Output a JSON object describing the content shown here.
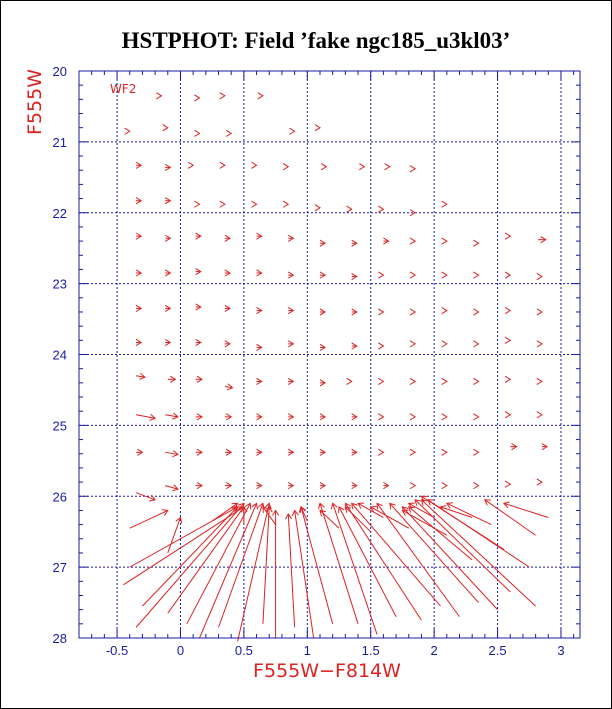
{
  "chart_data": {
    "type": "scatter",
    "title": "HSTPHOT: Field ’fake ngc185_u3kl03’",
    "xlabel": "F555W−F814W",
    "ylabel": "F555W",
    "xlim": [
      -0.8,
      3.15
    ],
    "ylim": [
      20,
      28
    ],
    "y_inverted": true,
    "grid": true,
    "x_grid": [
      -0.5,
      0,
      0.5,
      1,
      1.5,
      2,
      2.5,
      3
    ],
    "y_grid": [
      21,
      22,
      23,
      24,
      25,
      26,
      27
    ],
    "x_major_ticks": [
      -0.5,
      0,
      0.5,
      1,
      1.5,
      2,
      2.5,
      3
    ],
    "x_tick_labels": [
      "-0.5",
      "0",
      "0.5",
      "1",
      "1.5",
      "2",
      "2.5",
      "3"
    ],
    "y_major_ticks": [
      20,
      21,
      22,
      23,
      24,
      25,
      26,
      27,
      28
    ],
    "y_tick_labels": [
      "20",
      "21",
      "22",
      "23",
      "24",
      "25",
      "26",
      "27",
      "28"
    ],
    "annotation": "WF2",
    "series_style": "arrows from input (head) to recovered color/magnitude",
    "vectors": [
      {
        "x": -0.15,
        "y": 20.35,
        "dx": 0.0,
        "dy": 0.0
      },
      {
        "x": 0.15,
        "y": 20.38,
        "dx": 0.0,
        "dy": 0.0
      },
      {
        "x": 0.35,
        "y": 20.35,
        "dx": 0.0,
        "dy": 0.0
      },
      {
        "x": 0.65,
        "y": 20.35,
        "dx": 0.0,
        "dy": 0.0
      },
      {
        "x": -0.4,
        "y": 20.85,
        "dx": 0.0,
        "dy": 0.0
      },
      {
        "x": -0.1,
        "y": 20.8,
        "dx": 0.0,
        "dy": 0.0
      },
      {
        "x": 0.15,
        "y": 20.88,
        "dx": 0.0,
        "dy": 0.0
      },
      {
        "x": 0.4,
        "y": 20.88,
        "dx": 0.0,
        "dy": 0.0
      },
      {
        "x": 0.9,
        "y": 20.85,
        "dx": 0.0,
        "dy": 0.0
      },
      {
        "x": 1.1,
        "y": 20.8,
        "dx": 0.0,
        "dy": 0.0
      },
      {
        "x": -0.35,
        "y": 21.33,
        "dx": 0.04,
        "dy": 0.0
      },
      {
        "x": -0.12,
        "y": 21.36,
        "dx": 0.04,
        "dy": 0.0
      },
      {
        "x": 0.1,
        "y": 21.33,
        "dx": 0.0,
        "dy": 0.0
      },
      {
        "x": 0.35,
        "y": 21.33,
        "dx": 0.0,
        "dy": 0.0
      },
      {
        "x": 0.6,
        "y": 21.33,
        "dx": 0.0,
        "dy": 0.0
      },
      {
        "x": 0.85,
        "y": 21.35,
        "dx": 0.0,
        "dy": 0.0
      },
      {
        "x": 1.15,
        "y": 21.35,
        "dx": 0.0,
        "dy": 0.0
      },
      {
        "x": 1.45,
        "y": 21.35,
        "dx": 0.0,
        "dy": 0.0
      },
      {
        "x": 1.65,
        "y": 21.35,
        "dx": 0.0,
        "dy": 0.0
      },
      {
        "x": 1.85,
        "y": 21.38,
        "dx": 0.0,
        "dy": 0.0
      },
      {
        "x": -0.35,
        "y": 21.83,
        "dx": 0.04,
        "dy": 0.0
      },
      {
        "x": -0.12,
        "y": 21.83,
        "dx": 0.04,
        "dy": 0.0
      },
      {
        "x": 0.15,
        "y": 21.88,
        "dx": 0.0,
        "dy": 0.0
      },
      {
        "x": 0.35,
        "y": 21.88,
        "dx": 0.0,
        "dy": 0.0
      },
      {
        "x": 0.6,
        "y": 21.88,
        "dx": 0.0,
        "dy": 0.0
      },
      {
        "x": 0.85,
        "y": 21.88,
        "dx": 0.0,
        "dy": 0.0
      },
      {
        "x": 1.1,
        "y": 21.93,
        "dx": 0.0,
        "dy": 0.0
      },
      {
        "x": 1.35,
        "y": 21.95,
        "dx": 0.0,
        "dy": 0.0
      },
      {
        "x": 1.6,
        "y": 21.95,
        "dx": 0.0,
        "dy": 0.0
      },
      {
        "x": 1.85,
        "y": 22.0,
        "dx": 0.0,
        "dy": 0.0
      },
      {
        "x": 2.1,
        "y": 21.88,
        "dx": 0.0,
        "dy": 0.0
      },
      {
        "x": -0.35,
        "y": 22.33,
        "dx": 0.04,
        "dy": 0.0
      },
      {
        "x": -0.12,
        "y": 22.36,
        "dx": 0.04,
        "dy": 0.0
      },
      {
        "x": 0.12,
        "y": 22.33,
        "dx": 0.04,
        "dy": 0.0
      },
      {
        "x": 0.35,
        "y": 22.36,
        "dx": 0.04,
        "dy": 0.0
      },
      {
        "x": 0.6,
        "y": 22.33,
        "dx": 0.04,
        "dy": 0.0
      },
      {
        "x": 0.85,
        "y": 22.36,
        "dx": 0.04,
        "dy": 0.0
      },
      {
        "x": 1.1,
        "y": 22.43,
        "dx": 0.04,
        "dy": 0.0
      },
      {
        "x": 1.35,
        "y": 22.43,
        "dx": 0.04,
        "dy": 0.0
      },
      {
        "x": 1.6,
        "y": 22.4,
        "dx": 0.04,
        "dy": 0.0
      },
      {
        "x": 1.85,
        "y": 22.4,
        "dx": 0.0,
        "dy": 0.0
      },
      {
        "x": 2.1,
        "y": 22.4,
        "dx": 0.0,
        "dy": 0.0
      },
      {
        "x": 2.35,
        "y": 22.43,
        "dx": 0.0,
        "dy": 0.0
      },
      {
        "x": 2.6,
        "y": 22.33,
        "dx": 0.0,
        "dy": 0.0
      },
      {
        "x": 2.82,
        "y": 22.38,
        "dx": 0.06,
        "dy": 0.0
      },
      {
        "x": -0.35,
        "y": 22.85,
        "dx": 0.04,
        "dy": 0.0
      },
      {
        "x": -0.12,
        "y": 22.85,
        "dx": 0.04,
        "dy": 0.0
      },
      {
        "x": 0.12,
        "y": 22.83,
        "dx": 0.04,
        "dy": 0.0
      },
      {
        "x": 0.35,
        "y": 22.85,
        "dx": 0.04,
        "dy": 0.0
      },
      {
        "x": 0.6,
        "y": 22.85,
        "dx": 0.04,
        "dy": 0.0
      },
      {
        "x": 0.85,
        "y": 22.88,
        "dx": 0.04,
        "dy": 0.0
      },
      {
        "x": 1.1,
        "y": 22.88,
        "dx": 0.04,
        "dy": 0.0
      },
      {
        "x": 1.35,
        "y": 22.9,
        "dx": 0.04,
        "dy": 0.0
      },
      {
        "x": 1.6,
        "y": 22.88,
        "dx": 0.0,
        "dy": 0.0
      },
      {
        "x": 1.85,
        "y": 22.88,
        "dx": 0.0,
        "dy": 0.0
      },
      {
        "x": 2.1,
        "y": 22.88,
        "dx": 0.0,
        "dy": 0.0
      },
      {
        "x": 2.35,
        "y": 22.88,
        "dx": 0.0,
        "dy": 0.0
      },
      {
        "x": 2.6,
        "y": 22.88,
        "dx": 0.0,
        "dy": 0.0
      },
      {
        "x": 2.85,
        "y": 22.9,
        "dx": 0.0,
        "dy": 0.0
      },
      {
        "x": -0.35,
        "y": 23.35,
        "dx": 0.04,
        "dy": 0.0
      },
      {
        "x": -0.12,
        "y": 23.35,
        "dx": 0.04,
        "dy": 0.0
      },
      {
        "x": 0.12,
        "y": 23.33,
        "dx": 0.04,
        "dy": 0.0
      },
      {
        "x": 0.35,
        "y": 23.35,
        "dx": 0.04,
        "dy": 0.0
      },
      {
        "x": 0.6,
        "y": 23.38,
        "dx": 0.04,
        "dy": 0.0
      },
      {
        "x": 0.85,
        "y": 23.38,
        "dx": 0.04,
        "dy": 0.0
      },
      {
        "x": 1.1,
        "y": 23.4,
        "dx": 0.04,
        "dy": 0.0
      },
      {
        "x": 1.35,
        "y": 23.4,
        "dx": 0.04,
        "dy": 0.0
      },
      {
        "x": 1.6,
        "y": 23.4,
        "dx": 0.0,
        "dy": 0.0
      },
      {
        "x": 1.85,
        "y": 23.4,
        "dx": 0.0,
        "dy": 0.0
      },
      {
        "x": 2.1,
        "y": 23.38,
        "dx": 0.0,
        "dy": 0.0
      },
      {
        "x": 2.35,
        "y": 23.4,
        "dx": 0.0,
        "dy": 0.0
      },
      {
        "x": 2.6,
        "y": 23.38,
        "dx": 0.0,
        "dy": 0.0
      },
      {
        "x": 2.85,
        "y": 23.4,
        "dx": 0.0,
        "dy": 0.0
      },
      {
        "x": -0.35,
        "y": 23.83,
        "dx": 0.04,
        "dy": 0.0
      },
      {
        "x": -0.12,
        "y": 23.83,
        "dx": 0.04,
        "dy": 0.0
      },
      {
        "x": 0.12,
        "y": 23.83,
        "dx": 0.04,
        "dy": 0.0
      },
      {
        "x": 0.35,
        "y": 23.85,
        "dx": 0.04,
        "dy": 0.0
      },
      {
        "x": 0.6,
        "y": 23.9,
        "dx": 0.04,
        "dy": 0.0
      },
      {
        "x": 0.85,
        "y": 23.85,
        "dx": 0.04,
        "dy": 0.0
      },
      {
        "x": 1.1,
        "y": 23.9,
        "dx": 0.04,
        "dy": 0.0
      },
      {
        "x": 1.35,
        "y": 23.88,
        "dx": 0.04,
        "dy": 0.0
      },
      {
        "x": 1.6,
        "y": 23.88,
        "dx": 0.0,
        "dy": 0.0
      },
      {
        "x": 1.85,
        "y": 23.85,
        "dx": 0.0,
        "dy": 0.0
      },
      {
        "x": 2.1,
        "y": 23.85,
        "dx": 0.0,
        "dy": 0.0
      },
      {
        "x": 2.35,
        "y": 23.85,
        "dx": 0.0,
        "dy": 0.0
      },
      {
        "x": 2.6,
        "y": 23.8,
        "dx": 0.0,
        "dy": 0.0
      },
      {
        "x": 2.85,
        "y": 23.85,
        "dx": 0.0,
        "dy": 0.0
      },
      {
        "x": -0.35,
        "y": 24.3,
        "dx": 0.07,
        "dy": 0.02
      },
      {
        "x": -0.1,
        "y": 24.35,
        "dx": 0.06,
        "dy": 0.0
      },
      {
        "x": 0.12,
        "y": 24.35,
        "dx": 0.05,
        "dy": 0.0
      },
      {
        "x": 0.35,
        "y": 24.45,
        "dx": 0.06,
        "dy": 0.02
      },
      {
        "x": 0.6,
        "y": 24.38,
        "dx": 0.04,
        "dy": 0.0
      },
      {
        "x": 0.85,
        "y": 24.38,
        "dx": 0.04,
        "dy": 0.0
      },
      {
        "x": 1.1,
        "y": 24.4,
        "dx": 0.04,
        "dy": 0.0
      },
      {
        "x": 1.35,
        "y": 24.38,
        "dx": 0.0,
        "dy": 0.0
      },
      {
        "x": 1.6,
        "y": 24.38,
        "dx": 0.0,
        "dy": 0.0
      },
      {
        "x": 1.85,
        "y": 24.38,
        "dx": 0.0,
        "dy": 0.0
      },
      {
        "x": 2.1,
        "y": 24.38,
        "dx": 0.0,
        "dy": 0.0
      },
      {
        "x": 2.35,
        "y": 24.38,
        "dx": 0.0,
        "dy": 0.0
      },
      {
        "x": 2.6,
        "y": 24.35,
        "dx": 0.0,
        "dy": 0.0
      },
      {
        "x": 2.85,
        "y": 24.38,
        "dx": 0.0,
        "dy": 0.0
      },
      {
        "x": -0.35,
        "y": 24.85,
        "dx": 0.15,
        "dy": 0.05
      },
      {
        "x": -0.12,
        "y": 24.85,
        "dx": 0.1,
        "dy": 0.03
      },
      {
        "x": 0.12,
        "y": 24.88,
        "dx": 0.05,
        "dy": 0.0
      },
      {
        "x": 0.35,
        "y": 24.88,
        "dx": 0.05,
        "dy": 0.0
      },
      {
        "x": 0.6,
        "y": 24.88,
        "dx": 0.04,
        "dy": 0.0
      },
      {
        "x": 0.85,
        "y": 24.88,
        "dx": 0.04,
        "dy": 0.0
      },
      {
        "x": 1.1,
        "y": 24.88,
        "dx": 0.04,
        "dy": 0.0
      },
      {
        "x": 1.35,
        "y": 24.88,
        "dx": 0.04,
        "dy": 0.0
      },
      {
        "x": 1.6,
        "y": 24.88,
        "dx": 0.0,
        "dy": 0.0
      },
      {
        "x": 1.85,
        "y": 24.88,
        "dx": 0.0,
        "dy": 0.0
      },
      {
        "x": 2.1,
        "y": 24.88,
        "dx": 0.0,
        "dy": 0.0
      },
      {
        "x": 2.35,
        "y": 24.88,
        "dx": 0.0,
        "dy": 0.0
      },
      {
        "x": 2.6,
        "y": 24.85,
        "dx": 0.0,
        "dy": 0.0
      },
      {
        "x": 2.85,
        "y": 24.85,
        "dx": 0.0,
        "dy": 0.0
      },
      {
        "x": -0.35,
        "y": 25.38,
        "dx": 0.05,
        "dy": 0.0
      },
      {
        "x": -0.12,
        "y": 25.38,
        "dx": 0.1,
        "dy": 0.03
      },
      {
        "x": 0.12,
        "y": 25.38,
        "dx": 0.05,
        "dy": 0.0
      },
      {
        "x": 0.35,
        "y": 25.38,
        "dx": 0.05,
        "dy": 0.0
      },
      {
        "x": 0.6,
        "y": 25.38,
        "dx": 0.04,
        "dy": 0.0
      },
      {
        "x": 0.85,
        "y": 25.38,
        "dx": 0.04,
        "dy": 0.0
      },
      {
        "x": 1.1,
        "y": 25.38,
        "dx": 0.04,
        "dy": 0.0
      },
      {
        "x": 1.35,
        "y": 25.38,
        "dx": 0.04,
        "dy": 0.0
      },
      {
        "x": 1.6,
        "y": 25.38,
        "dx": 0.0,
        "dy": 0.0
      },
      {
        "x": 1.85,
        "y": 25.38,
        "dx": 0.0,
        "dy": 0.0
      },
      {
        "x": 2.1,
        "y": 25.38,
        "dx": 0.0,
        "dy": 0.0
      },
      {
        "x": 2.35,
        "y": 25.38,
        "dx": 0.0,
        "dy": 0.0
      },
      {
        "x": 2.6,
        "y": 25.3,
        "dx": 0.05,
        "dy": 0.0
      },
      {
        "x": 2.85,
        "y": 25.3,
        "dx": 0.04,
        "dy": 0.0
      },
      {
        "x": -0.35,
        "y": 25.95,
        "dx": 0.15,
        "dy": 0.1
      },
      {
        "x": -0.12,
        "y": 25.85,
        "dx": 0.1,
        "dy": 0.05
      },
      {
        "x": 0.12,
        "y": 25.85,
        "dx": 0.05,
        "dy": 0.0
      },
      {
        "x": 0.35,
        "y": 25.85,
        "dx": 0.05,
        "dy": 0.0
      },
      {
        "x": 0.6,
        "y": 25.85,
        "dx": 0.04,
        "dy": 0.0
      },
      {
        "x": 0.85,
        "y": 25.85,
        "dx": 0.04,
        "dy": 0.0
      },
      {
        "x": 1.1,
        "y": 25.85,
        "dx": 0.04,
        "dy": 0.0
      },
      {
        "x": 1.35,
        "y": 25.85,
        "dx": 0.04,
        "dy": 0.0
      },
      {
        "x": 1.6,
        "y": 25.85,
        "dx": 0.04,
        "dy": 0.0
      },
      {
        "x": 1.85,
        "y": 25.85,
        "dx": 0.0,
        "dy": 0.0
      },
      {
        "x": 2.1,
        "y": 25.85,
        "dx": 0.0,
        "dy": 0.0
      },
      {
        "x": 2.35,
        "y": 25.85,
        "dx": 0.0,
        "dy": 0.0
      },
      {
        "x": 2.6,
        "y": 25.83,
        "dx": 0.0,
        "dy": 0.0
      },
      {
        "x": 2.85,
        "y": 25.8,
        "dx": 0.0,
        "dy": 0.0
      },
      {
        "x": -0.4,
        "y": 26.45,
        "dx": 0.3,
        "dy": -0.25
      },
      {
        "x": -0.1,
        "y": 26.8,
        "dx": 0.1,
        "dy": -0.5
      },
      {
        "x": -0.4,
        "y": 27.0,
        "dx": 0.85,
        "dy": -0.85
      },
      {
        "x": -0.45,
        "y": 27.25,
        "dx": 0.95,
        "dy": -1.1
      },
      {
        "x": -0.3,
        "y": 27.55,
        "dx": 0.75,
        "dy": -1.4
      },
      {
        "x": -0.1,
        "y": 27.65,
        "dx": 0.6,
        "dy": -1.5
      },
      {
        "x": -0.35,
        "y": 27.85,
        "dx": 0.85,
        "dy": -1.75
      },
      {
        "x": 0.05,
        "y": 27.8,
        "dx": 0.5,
        "dy": -1.7
      },
      {
        "x": 0.15,
        "y": 28.0,
        "dx": 0.45,
        "dy": -1.9
      },
      {
        "x": 0.3,
        "y": 27.85,
        "dx": 0.35,
        "dy": -1.75
      },
      {
        "x": 0.45,
        "y": 28.05,
        "dx": 0.25,
        "dy": -1.95
      },
      {
        "x": 0.65,
        "y": 27.8,
        "dx": 0.05,
        "dy": -1.65
      },
      {
        "x": 0.75,
        "y": 28.0,
        "dx": 0.0,
        "dy": -1.8
      },
      {
        "x": 0.9,
        "y": 27.85,
        "dx": -0.05,
        "dy": -1.6
      },
      {
        "x": 1.05,
        "y": 28.0,
        "dx": -0.15,
        "dy": -1.8
      },
      {
        "x": 1.2,
        "y": 27.8,
        "dx": -0.25,
        "dy": -1.65
      },
      {
        "x": 1.4,
        "y": 27.8,
        "dx": -0.3,
        "dy": -1.7
      },
      {
        "x": 1.55,
        "y": 27.95,
        "dx": -0.35,
        "dy": -1.85
      },
      {
        "x": 1.7,
        "y": 27.7,
        "dx": -0.45,
        "dy": -1.55
      },
      {
        "x": 1.9,
        "y": 27.75,
        "dx": -0.6,
        "dy": -1.65
      },
      {
        "x": 2.05,
        "y": 27.55,
        "dx": -0.7,
        "dy": -1.45
      },
      {
        "x": 2.2,
        "y": 27.7,
        "dx": -0.65,
        "dy": -1.6
      },
      {
        "x": 2.35,
        "y": 27.5,
        "dx": -0.7,
        "dy": -1.4
      },
      {
        "x": 2.5,
        "y": 27.6,
        "dx": -0.75,
        "dy": -1.45
      },
      {
        "x": 2.6,
        "y": 27.35,
        "dx": -0.75,
        "dy": -1.3
      },
      {
        "x": 2.8,
        "y": 27.55,
        "dx": -0.9,
        "dy": -1.5
      },
      {
        "x": 2.75,
        "y": 27.0,
        "dx": -0.8,
        "dy": -0.95
      },
      {
        "x": 2.55,
        "y": 26.75,
        "dx": -0.65,
        "dy": -0.75
      },
      {
        "x": 2.3,
        "y": 26.9,
        "dx": -0.5,
        "dy": -0.75
      },
      {
        "x": 2.8,
        "y": 26.55,
        "dx": -0.4,
        "dy": -0.5
      },
      {
        "x": 2.45,
        "y": 26.4,
        "dx": -0.35,
        "dy": -0.3
      },
      {
        "x": 2.1,
        "y": 26.55,
        "dx": -0.35,
        "dy": -0.35
      },
      {
        "x": 1.8,
        "y": 26.45,
        "dx": -0.3,
        "dy": -0.3
      },
      {
        "x": 1.5,
        "y": 26.5,
        "dx": -0.2,
        "dy": -0.35
      },
      {
        "x": 1.25,
        "y": 26.45,
        "dx": -0.15,
        "dy": -0.25
      },
      {
        "x": 1.0,
        "y": 26.35,
        "dx": -0.05,
        "dy": -0.2
      },
      {
        "x": 0.75,
        "y": 26.4,
        "dx": -0.1,
        "dy": -0.25
      },
      {
        "x": 0.5,
        "y": 26.4,
        "dx": 0.0,
        "dy": -0.25
      },
      {
        "x": 0.25,
        "y": 26.35,
        "dx": 0.2,
        "dy": -0.25
      },
      {
        "x": 2.9,
        "y": 26.3,
        "dx": -0.35,
        "dy": -0.2
      },
      {
        "x": 2.3,
        "y": 26.3,
        "dx": -0.25,
        "dy": -0.15
      },
      {
        "x": 2.0,
        "y": 26.3,
        "dx": -0.2,
        "dy": -0.2
      },
      {
        "x": 1.6,
        "y": 26.3,
        "dx": -0.2,
        "dy": -0.2
      }
    ]
  }
}
